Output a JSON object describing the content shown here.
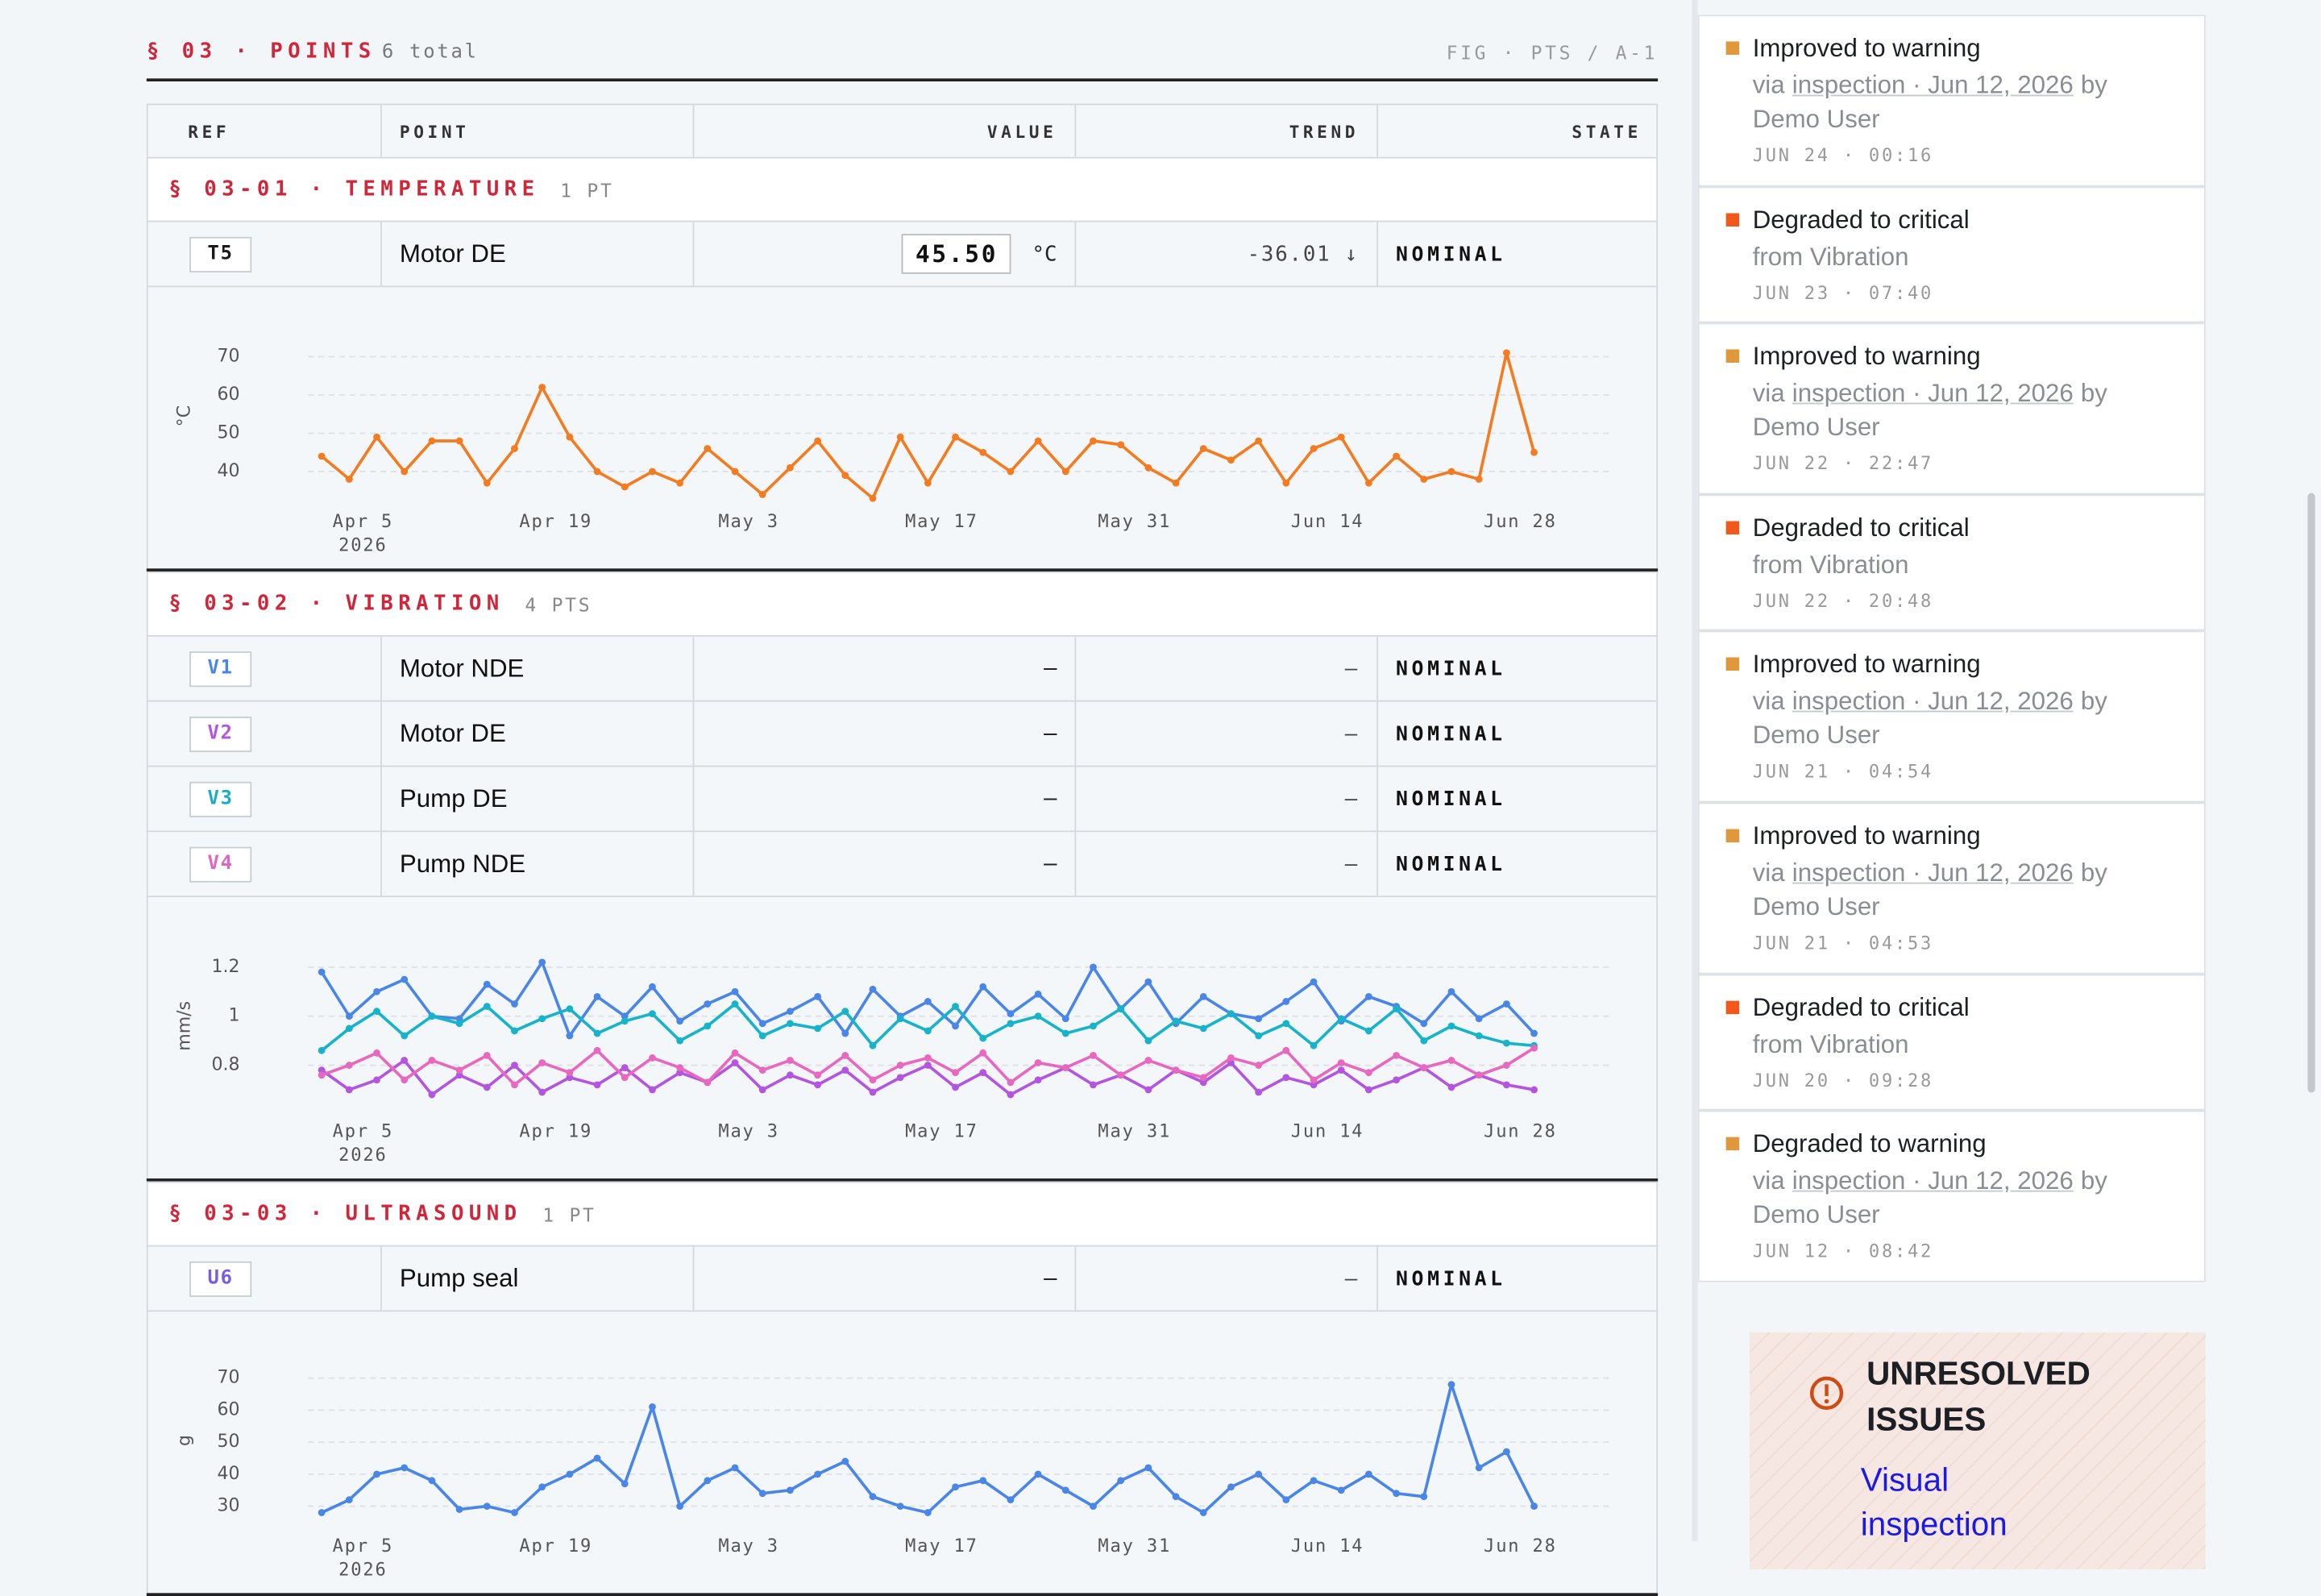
{
  "section": {
    "title": "§ 03 · POINTS",
    "count": "6 total",
    "figure": "FIG · PTS / A-1"
  },
  "columns": [
    "REF",
    "POINT",
    "VALUE",
    "TREND",
    "STATE"
  ],
  "groups": [
    {
      "title": "§ 03-01 · TEMPERATURE",
      "count": "1 PT",
      "rows": [
        {
          "ref": "T5",
          "color": "#1a1a1a",
          "point": "Motor DE",
          "value": "45.50",
          "unit": "°C",
          "trend": "-36.01 ↓",
          "state": "NOMINAL"
        }
      ]
    },
    {
      "title": "§ 03-02 · VIBRATION",
      "count": "4 PTS",
      "rows": [
        {
          "ref": "V1",
          "color": "#4a86e8",
          "point": "Motor NDE",
          "value": "–",
          "trend": "–",
          "state": "NOMINAL"
        },
        {
          "ref": "V2",
          "color": "#b455e0",
          "point": "Motor DE",
          "value": "–",
          "trend": "–",
          "state": "NOMINAL"
        },
        {
          "ref": "V3",
          "color": "#17adc4",
          "point": "Pump DE",
          "value": "–",
          "trend": "–",
          "state": "NOMINAL"
        },
        {
          "ref": "V4",
          "color": "#e064c0",
          "point": "Pump NDE",
          "value": "–",
          "trend": "–",
          "state": "NOMINAL"
        }
      ]
    },
    {
      "title": "§ 03-03 · ULTRASOUND",
      "count": "1 PT",
      "rows": [
        {
          "ref": "U6",
          "color": "#7a5ce0",
          "point": "Pump seal",
          "value": "–",
          "trend": "–",
          "state": "NOMINAL"
        }
      ]
    }
  ],
  "chart_data": [
    {
      "type": "line",
      "y_label": "°C",
      "x": [
        "2026-04-02",
        "2026-04-04",
        "2026-04-06",
        "2026-04-08",
        "2026-04-10",
        "2026-04-12",
        "2026-04-14",
        "2026-04-16",
        "2026-04-18",
        "2026-04-20",
        "2026-04-22",
        "2026-04-24",
        "2026-04-26",
        "2026-04-28",
        "2026-04-30",
        "2026-05-02",
        "2026-05-04",
        "2026-05-06",
        "2026-05-08",
        "2026-05-10",
        "2026-05-12",
        "2026-05-14",
        "2026-05-16",
        "2026-05-18",
        "2026-05-20",
        "2026-05-22",
        "2026-05-24",
        "2026-05-26",
        "2026-05-28",
        "2026-05-30",
        "2026-06-01",
        "2026-06-03",
        "2026-06-05",
        "2026-06-07",
        "2026-06-09",
        "2026-06-11",
        "2026-06-13",
        "2026-06-15",
        "2026-06-17",
        "2026-06-19",
        "2026-06-21",
        "2026-06-23",
        "2026-06-25",
        "2026-06-27",
        "2026-06-29"
      ],
      "xlim": [
        "2026-04-01",
        "2026-07-01"
      ],
      "xticks": [
        {
          "value": "2026-04-05",
          "label": "Apr 5\n2026"
        },
        {
          "value": "2026-04-19",
          "label": "Apr 19"
        },
        {
          "value": "2026-05-03",
          "label": "May 3"
        },
        {
          "value": "2026-05-17",
          "label": "May 17"
        },
        {
          "value": "2026-05-31",
          "label": "May 31"
        },
        {
          "value": "2026-06-14",
          "label": "Jun 14"
        },
        {
          "value": "2026-06-28",
          "label": "Jun 28"
        }
      ],
      "ylim": [
        34,
        75
      ],
      "yticks": [
        40,
        50,
        60,
        70
      ],
      "grid": true,
      "series": [
        {
          "color": "#f47b20",
          "values": [
            44,
            38,
            49,
            40,
            48,
            48,
            37,
            46,
            62,
            49,
            40,
            36,
            40,
            37,
            46,
            40,
            34,
            41,
            48,
            39,
            33,
            49,
            37,
            49,
            45,
            40,
            48,
            40,
            48,
            47,
            41,
            37,
            46,
            43,
            48,
            37,
            46,
            49,
            37,
            44,
            38,
            40,
            38,
            71,
            45
          ]
        }
      ]
    },
    {
      "type": "line",
      "y_label": "mm/s",
      "x": [
        "2026-04-02",
        "2026-04-04",
        "2026-04-06",
        "2026-04-08",
        "2026-04-10",
        "2026-04-12",
        "2026-04-14",
        "2026-04-16",
        "2026-04-18",
        "2026-04-20",
        "2026-04-22",
        "2026-04-24",
        "2026-04-26",
        "2026-04-28",
        "2026-04-30",
        "2026-05-02",
        "2026-05-04",
        "2026-05-06",
        "2026-05-08",
        "2026-05-10",
        "2026-05-12",
        "2026-05-14",
        "2026-05-16",
        "2026-05-18",
        "2026-05-20",
        "2026-05-22",
        "2026-05-24",
        "2026-05-26",
        "2026-05-28",
        "2026-05-30",
        "2026-06-01",
        "2026-06-03",
        "2026-06-05",
        "2026-06-07",
        "2026-06-09",
        "2026-06-11",
        "2026-06-13",
        "2026-06-15",
        "2026-06-17",
        "2026-06-19",
        "2026-06-21",
        "2026-06-23",
        "2026-06-25",
        "2026-06-27",
        "2026-06-29"
      ],
      "xlim": [
        "2026-04-01",
        "2026-07-01"
      ],
      "xticks": [
        {
          "value": "2026-04-05",
          "label": "Apr 5\n2026"
        },
        {
          "value": "2026-04-19",
          "label": "Apr 19"
        },
        {
          "value": "2026-05-03",
          "label": "May 3"
        },
        {
          "value": "2026-05-17",
          "label": "May 17"
        },
        {
          "value": "2026-05-31",
          "label": "May 31"
        },
        {
          "value": "2026-06-14",
          "label": "Jun 14"
        },
        {
          "value": "2026-06-28",
          "label": "Jun 28"
        }
      ],
      "ylim": [
        0.64,
        1.28
      ],
      "yticks": [
        0.8,
        1,
        1.2
      ],
      "grid": true,
      "series": [
        {
          "color": "#4a86e8",
          "values": [
            1.18,
            1.0,
            1.1,
            1.15,
            1.0,
            0.99,
            1.13,
            1.05,
            1.22,
            0.92,
            1.08,
            1.0,
            1.12,
            0.98,
            1.05,
            1.1,
            0.97,
            1.02,
            1.08,
            0.93,
            1.11,
            1.0,
            1.06,
            0.96,
            1.12,
            1.01,
            1.09,
            0.99,
            1.2,
            1.03,
            1.14,
            0.97,
            1.08,
            1.01,
            0.99,
            1.06,
            1.14,
            0.98,
            1.08,
            1.04,
            0.97,
            1.1,
            0.99,
            1.05,
            0.93
          ]
        },
        {
          "color": "#b455e0",
          "values": [
            0.78,
            0.7,
            0.74,
            0.82,
            0.68,
            0.76,
            0.71,
            0.8,
            0.69,
            0.75,
            0.72,
            0.79,
            0.7,
            0.77,
            0.73,
            0.81,
            0.7,
            0.76,
            0.72,
            0.78,
            0.69,
            0.75,
            0.8,
            0.71,
            0.77,
            0.68,
            0.74,
            0.79,
            0.72,
            0.76,
            0.7,
            0.78,
            0.73,
            0.81,
            0.69,
            0.75,
            0.72,
            0.78,
            0.7,
            0.74,
            0.79,
            0.71,
            0.76,
            0.72,
            0.7
          ]
        },
        {
          "color": "#17b3c9",
          "values": [
            0.86,
            0.95,
            1.02,
            0.92,
            1.0,
            0.97,
            1.04,
            0.94,
            0.99,
            1.03,
            0.93,
            0.98,
            1.01,
            0.9,
            0.96,
            1.05,
            0.92,
            0.97,
            0.95,
            1.02,
            0.88,
            0.99,
            0.94,
            1.04,
            0.91,
            0.97,
            1.0,
            0.93,
            0.96,
            1.03,
            0.9,
            0.98,
            0.95,
            1.01,
            0.92,
            0.97,
            0.88,
            0.99,
            0.94,
            1.03,
            0.9,
            0.96,
            0.92,
            0.89,
            0.88
          ]
        },
        {
          "color": "#e868c0",
          "values": [
            0.76,
            0.8,
            0.85,
            0.74,
            0.82,
            0.78,
            0.84,
            0.72,
            0.81,
            0.77,
            0.86,
            0.75,
            0.83,
            0.79,
            0.73,
            0.85,
            0.78,
            0.82,
            0.76,
            0.84,
            0.74,
            0.8,
            0.83,
            0.77,
            0.85,
            0.73,
            0.81,
            0.79,
            0.84,
            0.76,
            0.82,
            0.78,
            0.75,
            0.83,
            0.8,
            0.86,
            0.74,
            0.81,
            0.77,
            0.84,
            0.79,
            0.82,
            0.76,
            0.8,
            0.87
          ]
        }
      ]
    },
    {
      "type": "line",
      "y_label": "g",
      "x": [
        "2026-04-02",
        "2026-04-04",
        "2026-04-06",
        "2026-04-08",
        "2026-04-10",
        "2026-04-12",
        "2026-04-14",
        "2026-04-16",
        "2026-04-18",
        "2026-04-20",
        "2026-04-22",
        "2026-04-24",
        "2026-04-26",
        "2026-04-28",
        "2026-04-30",
        "2026-05-02",
        "2026-05-04",
        "2026-05-06",
        "2026-05-08",
        "2026-05-10",
        "2026-05-12",
        "2026-05-14",
        "2026-05-16",
        "2026-05-18",
        "2026-05-20",
        "2026-05-22",
        "2026-05-24",
        "2026-05-26",
        "2026-05-28",
        "2026-05-30",
        "2026-06-01",
        "2026-06-03",
        "2026-06-05",
        "2026-06-07",
        "2026-06-09",
        "2026-06-11",
        "2026-06-13",
        "2026-06-15",
        "2026-06-17",
        "2026-06-19",
        "2026-06-21",
        "2026-06-23",
        "2026-06-25",
        "2026-06-27",
        "2026-06-29"
      ],
      "xlim": [
        "2026-04-01",
        "2026-07-01"
      ],
      "xticks": [
        {
          "value": "2026-04-05",
          "label": "Apr 5\n2026"
        },
        {
          "value": "2026-04-19",
          "label": "Apr 19"
        },
        {
          "value": "2026-05-03",
          "label": "May 3"
        },
        {
          "value": "2026-05-17",
          "label": "May 17"
        },
        {
          "value": "2026-05-31",
          "label": "May 31"
        },
        {
          "value": "2026-06-14",
          "label": "Jun 14"
        },
        {
          "value": "2026-06-28",
          "label": "Jun 28"
        }
      ],
      "ylim": [
        26,
        75
      ],
      "yticks": [
        30,
        40,
        50,
        60,
        70
      ],
      "grid": true,
      "series": [
        {
          "color": "#4a86e8",
          "values": [
            28,
            32,
            40,
            42,
            38,
            29,
            30,
            28,
            36,
            40,
            45,
            37,
            61,
            30,
            38,
            42,
            34,
            35,
            40,
            44,
            33,
            30,
            28,
            36,
            38,
            32,
            40,
            35,
            30,
            38,
            42,
            33,
            28,
            36,
            40,
            32,
            38,
            35,
            40,
            34,
            33,
            68,
            42,
            47,
            30
          ]
        }
      ]
    }
  ],
  "activity": [
    {
      "color": "#e0983c",
      "title": "Improved to warning",
      "via": "via",
      "link": "inspection · Jun 12, 2026",
      "by": "by Demo User",
      "time": "JUN 24 · 00:16"
    },
    {
      "color": "#f0581c",
      "title": "Degraded to critical",
      "detail": "from Vibration",
      "time": "JUN 23 · 07:40"
    },
    {
      "color": "#e0983c",
      "title": "Improved to warning",
      "via": "via",
      "link": "inspection · Jun 12, 2026",
      "by": "by Demo User",
      "time": "JUN 22 · 22:47"
    },
    {
      "color": "#f0581c",
      "title": "Degraded to critical",
      "detail": "from Vibration",
      "time": "JUN 22 · 20:48"
    },
    {
      "color": "#e0983c",
      "title": "Improved to warning",
      "via": "via",
      "link": "inspection · Jun 12, 2026",
      "by": "by Demo User",
      "time": "JUN 21 · 04:54"
    },
    {
      "color": "#e0983c",
      "title": "Improved to warning",
      "via": "via",
      "link": "inspection · Jun 12, 2026",
      "by": "by Demo User",
      "time": "JUN 21 · 04:53"
    },
    {
      "color": "#f0581c",
      "title": "Degraded to critical",
      "detail": "from Vibration",
      "time": "JUN 20 · 09:28"
    },
    {
      "color": "#e0983c",
      "title": "Degraded to warning",
      "via": "via",
      "link": "inspection · Jun 12, 2026",
      "by": "by Demo User",
      "time": "JUN 12 · 08:42"
    }
  ],
  "issues": {
    "title": "UNRESOLVED ISSUES",
    "link": "Visual inspection"
  }
}
